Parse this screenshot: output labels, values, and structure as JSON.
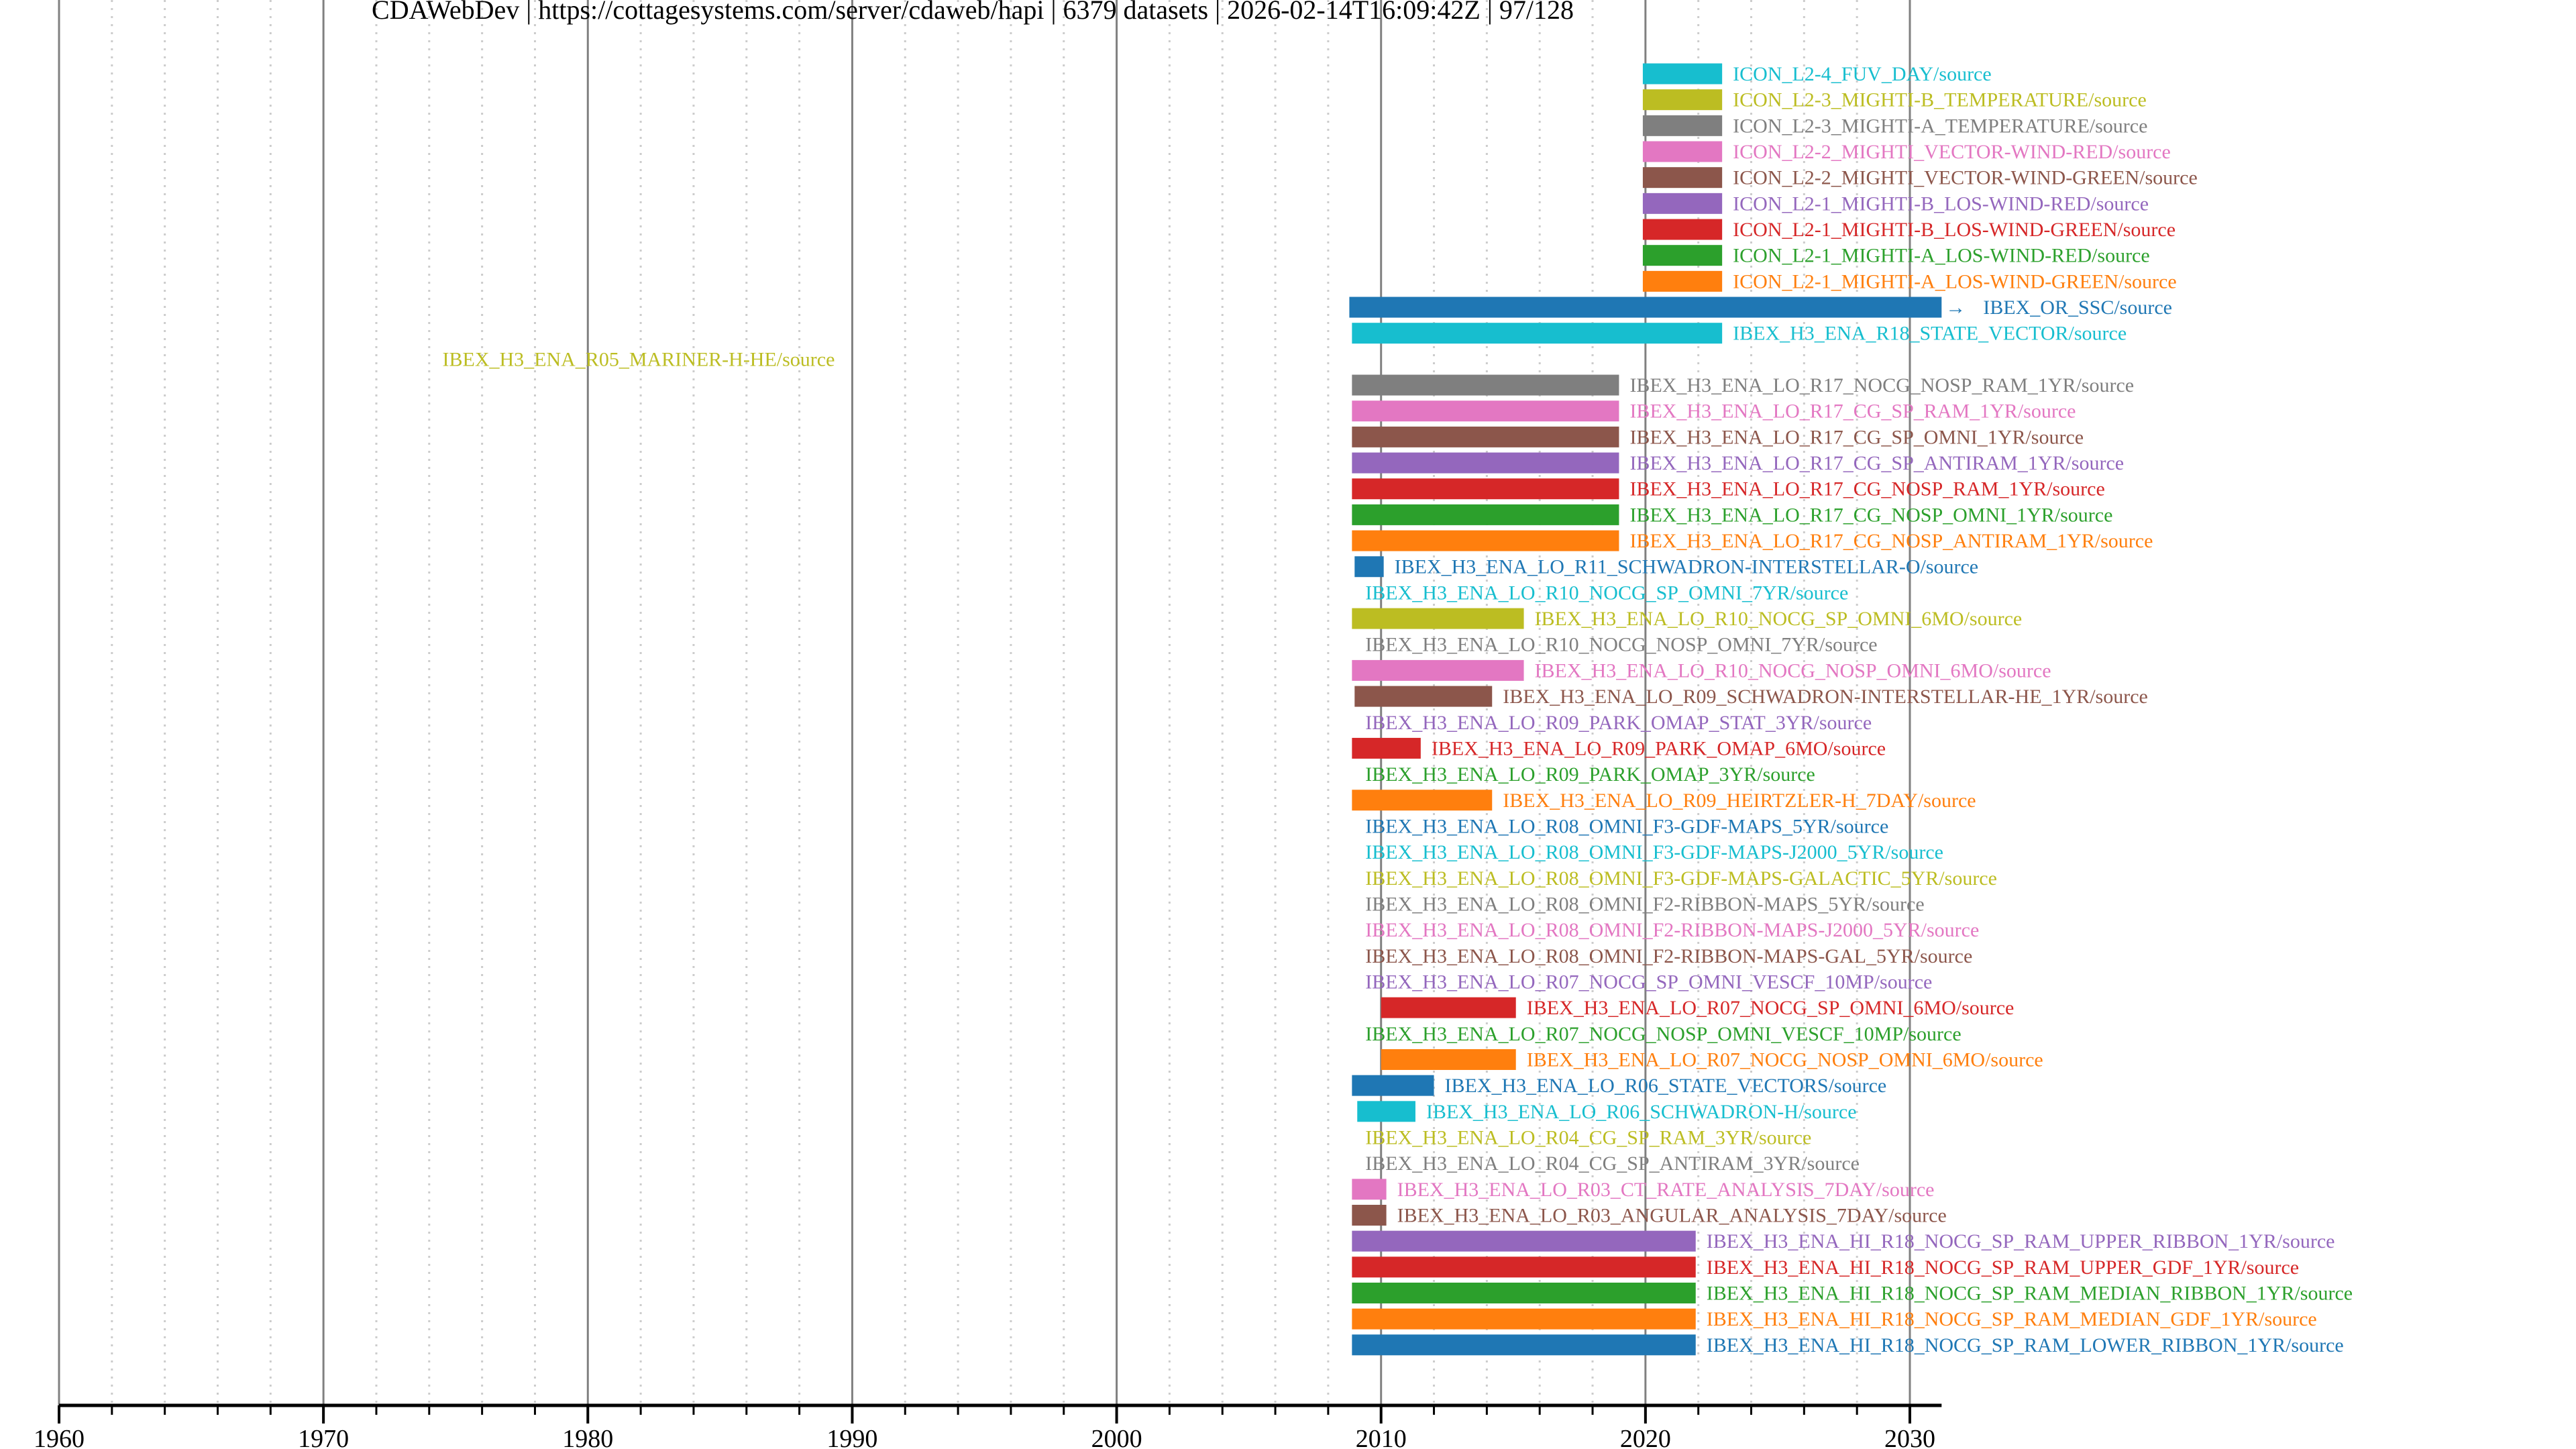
{
  "chart_data": {
    "type": "timeline",
    "title": "CDAWebDev | https://cottagesystems.com/server/cdaweb/hapi | 6379 datasets | 2026-02-14T16:09:42Z | 97/128",
    "xlabel": "",
    "ylabel": "",
    "xlim": [
      1960,
      2031.2
    ],
    "x_ticks": [
      "1960",
      "1970",
      "1980",
      "1990",
      "2000",
      "2010",
      "2020",
      "2030"
    ],
    "x_tick_values": [
      1960,
      1970,
      1980,
      1990,
      2000,
      2010,
      2020,
      2030
    ],
    "minor_tick_step_years": 2,
    "grid": true,
    "palette": [
      "#1f77b4",
      "#ff7f0e",
      "#2ca02c",
      "#d62728",
      "#9467bd",
      "#8c564b",
      "#e377c2",
      "#7f7f7f",
      "#bcbd22",
      "#17becf"
    ],
    "ongoing_marker": "→",
    "datasets": [
      {
        "label": "ICON_L2-4_FUV_DAY/source",
        "start": 2019.9,
        "end": 2022.9,
        "color": "#17becf"
      },
      {
        "label": "ICON_L2-3_MIGHTI-B_TEMPERATURE/source",
        "start": 2019.9,
        "end": 2022.9,
        "color": "#bcbd22"
      },
      {
        "label": "ICON_L2-3_MIGHTI-A_TEMPERATURE/source",
        "start": 2019.9,
        "end": 2022.9,
        "color": "#7f7f7f"
      },
      {
        "label": "ICON_L2-2_MIGHTI_VECTOR-WIND-RED/source",
        "start": 2019.9,
        "end": 2022.9,
        "color": "#e377c2"
      },
      {
        "label": "ICON_L2-2_MIGHTI_VECTOR-WIND-GREEN/source",
        "start": 2019.9,
        "end": 2022.9,
        "color": "#8c564b"
      },
      {
        "label": "ICON_L2-1_MIGHTI-B_LOS-WIND-RED/source",
        "start": 2019.9,
        "end": 2022.9,
        "color": "#9467bd"
      },
      {
        "label": "ICON_L2-1_MIGHTI-B_LOS-WIND-GREEN/source",
        "start": 2019.9,
        "end": 2022.9,
        "color": "#d62728"
      },
      {
        "label": "ICON_L2-1_MIGHTI-A_LOS-WIND-RED/source",
        "start": 2019.9,
        "end": 2022.9,
        "color": "#2ca02c"
      },
      {
        "label": "ICON_L2-1_MIGHTI-A_LOS-WIND-GREEN/source",
        "start": 2019.9,
        "end": 2022.9,
        "color": "#ff7f0e"
      },
      {
        "label": "IBEX_OR_SSC/source",
        "start": 2008.8,
        "end": 2031.2,
        "color": "#1f77b4",
        "ongoing": true
      },
      {
        "label": "IBEX_H3_ENA_R18_STATE_VECTOR/source",
        "start": 2008.9,
        "end": 2022.9,
        "color": "#17becf"
      },
      {
        "label": "IBEX_H3_ENA_R05_MARINER-H-HE/source",
        "start": null,
        "end": null,
        "color": "#bcbd22",
        "label_at": 1974.5
      },
      {
        "label": "IBEX_H3_ENA_LO_R17_NOCG_NOSP_RAM_1YR/source",
        "start": 2008.9,
        "end": 2019.0,
        "color": "#7f7f7f"
      },
      {
        "label": "IBEX_H3_ENA_LO_R17_CG_SP_RAM_1YR/source",
        "start": 2008.9,
        "end": 2019.0,
        "color": "#e377c2"
      },
      {
        "label": "IBEX_H3_ENA_LO_R17_CG_SP_OMNI_1YR/source",
        "start": 2008.9,
        "end": 2019.0,
        "color": "#8c564b"
      },
      {
        "label": "IBEX_H3_ENA_LO_R17_CG_SP_ANTIRAM_1YR/source",
        "start": 2008.9,
        "end": 2019.0,
        "color": "#9467bd"
      },
      {
        "label": "IBEX_H3_ENA_LO_R17_CG_NOSP_RAM_1YR/source",
        "start": 2008.9,
        "end": 2019.0,
        "color": "#d62728"
      },
      {
        "label": "IBEX_H3_ENA_LO_R17_CG_NOSP_OMNI_1YR/source",
        "start": 2008.9,
        "end": 2019.0,
        "color": "#2ca02c"
      },
      {
        "label": "IBEX_H3_ENA_LO_R17_CG_NOSP_ANTIRAM_1YR/source",
        "start": 2008.9,
        "end": 2019.0,
        "color": "#ff7f0e"
      },
      {
        "label": "IBEX_H3_ENA_LO_R11_SCHWADRON-INTERSTELLAR-O/source",
        "start": 2009.0,
        "end": 2010.1,
        "color": "#1f77b4"
      },
      {
        "label": "IBEX_H3_ENA_LO_R10_NOCG_SP_OMNI_7YR/source",
        "start": null,
        "end": null,
        "color": "#17becf"
      },
      {
        "label": "IBEX_H3_ENA_LO_R10_NOCG_SP_OMNI_6MO/source",
        "start": 2008.9,
        "end": 2015.4,
        "color": "#bcbd22"
      },
      {
        "label": "IBEX_H3_ENA_LO_R10_NOCG_NOSP_OMNI_7YR/source",
        "start": null,
        "end": null,
        "color": "#7f7f7f"
      },
      {
        "label": "IBEX_H3_ENA_LO_R10_NOCG_NOSP_OMNI_6MO/source",
        "start": 2008.9,
        "end": 2015.4,
        "color": "#e377c2"
      },
      {
        "label": "IBEX_H3_ENA_LO_R09_SCHWADRON-INTERSTELLAR-HE_1YR/source",
        "start": 2009.0,
        "end": 2014.2,
        "color": "#8c564b"
      },
      {
        "label": "IBEX_H3_ENA_LO_R09_PARK_OMAP_STAT_3YR/source",
        "start": null,
        "end": null,
        "color": "#9467bd"
      },
      {
        "label": "IBEX_H3_ENA_LO_R09_PARK_OMAP_6MO/source",
        "start": 2008.9,
        "end": 2011.5,
        "color": "#d62728"
      },
      {
        "label": "IBEX_H3_ENA_LO_R09_PARK_OMAP_3YR/source",
        "start": null,
        "end": null,
        "color": "#2ca02c"
      },
      {
        "label": "IBEX_H3_ENA_LO_R09_HEIRTZLER-H_7DAY/source",
        "start": 2008.9,
        "end": 2014.2,
        "color": "#ff7f0e"
      },
      {
        "label": "IBEX_H3_ENA_LO_R08_OMNI_F3-GDF-MAPS_5YR/source",
        "start": null,
        "end": null,
        "color": "#1f77b4"
      },
      {
        "label": "IBEX_H3_ENA_LO_R08_OMNI_F3-GDF-MAPS-J2000_5YR/source",
        "start": null,
        "end": null,
        "color": "#17becf"
      },
      {
        "label": "IBEX_H3_ENA_LO_R08_OMNI_F3-GDF-MAPS-GALACTIC_5YR/source",
        "start": null,
        "end": null,
        "color": "#bcbd22"
      },
      {
        "label": "IBEX_H3_ENA_LO_R08_OMNI_F2-RIBBON-MAPS_5YR/source",
        "start": null,
        "end": null,
        "color": "#7f7f7f"
      },
      {
        "label": "IBEX_H3_ENA_LO_R08_OMNI_F2-RIBBON-MAPS-J2000_5YR/source",
        "start": null,
        "end": null,
        "color": "#e377c2"
      },
      {
        "label": "IBEX_H3_ENA_LO_R08_OMNI_F2-RIBBON-MAPS-GAL_5YR/source",
        "start": null,
        "end": null,
        "color": "#8c564b"
      },
      {
        "label": "IBEX_H3_ENA_LO_R07_NOCG_SP_OMNI_VESCF_10MP/source",
        "start": null,
        "end": null,
        "color": "#9467bd"
      },
      {
        "label": "IBEX_H3_ENA_LO_R07_NOCG_SP_OMNI_6MO/source",
        "start": 2010.0,
        "end": 2015.1,
        "color": "#d62728"
      },
      {
        "label": "IBEX_H3_ENA_LO_R07_NOCG_NOSP_OMNI_VESCF_10MP/source",
        "start": null,
        "end": null,
        "color": "#2ca02c"
      },
      {
        "label": "IBEX_H3_ENA_LO_R07_NOCG_NOSP_OMNI_6MO/source",
        "start": 2010.0,
        "end": 2015.1,
        "color": "#ff7f0e"
      },
      {
        "label": "IBEX_H3_ENA_LO_R06_STATE_VECTORS/source",
        "start": 2008.9,
        "end": 2012.0,
        "color": "#1f77b4"
      },
      {
        "label": "IBEX_H3_ENA_LO_R06_SCHWADRON-H/source",
        "start": 2009.1,
        "end": 2011.3,
        "color": "#17becf"
      },
      {
        "label": "IBEX_H3_ENA_LO_R04_CG_SP_RAM_3YR/source",
        "start": null,
        "end": null,
        "color": "#bcbd22"
      },
      {
        "label": "IBEX_H3_ENA_LO_R04_CG_SP_ANTIRAM_3YR/source",
        "start": null,
        "end": null,
        "color": "#7f7f7f"
      },
      {
        "label": "IBEX_H3_ENA_LO_R03_CT_RATE_ANALYSIS_7DAY/source",
        "start": 2008.9,
        "end": 2010.2,
        "color": "#e377c2"
      },
      {
        "label": "IBEX_H3_ENA_LO_R03_ANGULAR_ANALYSIS_7DAY/source",
        "start": 2008.9,
        "end": 2010.2,
        "color": "#8c564b"
      },
      {
        "label": "IBEX_H3_ENA_HI_R18_NOCG_SP_RAM_UPPER_RIBBON_1YR/source",
        "start": 2008.9,
        "end": 2021.9,
        "color": "#9467bd"
      },
      {
        "label": "IBEX_H3_ENA_HI_R18_NOCG_SP_RAM_UPPER_GDF_1YR/source",
        "start": 2008.9,
        "end": 2021.9,
        "color": "#d62728"
      },
      {
        "label": "IBEX_H3_ENA_HI_R18_NOCG_SP_RAM_MEDIAN_RIBBON_1YR/source",
        "start": 2008.9,
        "end": 2021.9,
        "color": "#2ca02c"
      },
      {
        "label": "IBEX_H3_ENA_HI_R18_NOCG_SP_RAM_MEDIAN_GDF_1YR/source",
        "start": 2008.9,
        "end": 2021.9,
        "color": "#ff7f0e"
      },
      {
        "label": "IBEX_H3_ENA_HI_R18_NOCG_SP_RAM_LOWER_RIBBON_1YR/source",
        "start": 2008.9,
        "end": 2021.9,
        "color": "#1f77b4"
      }
    ]
  }
}
